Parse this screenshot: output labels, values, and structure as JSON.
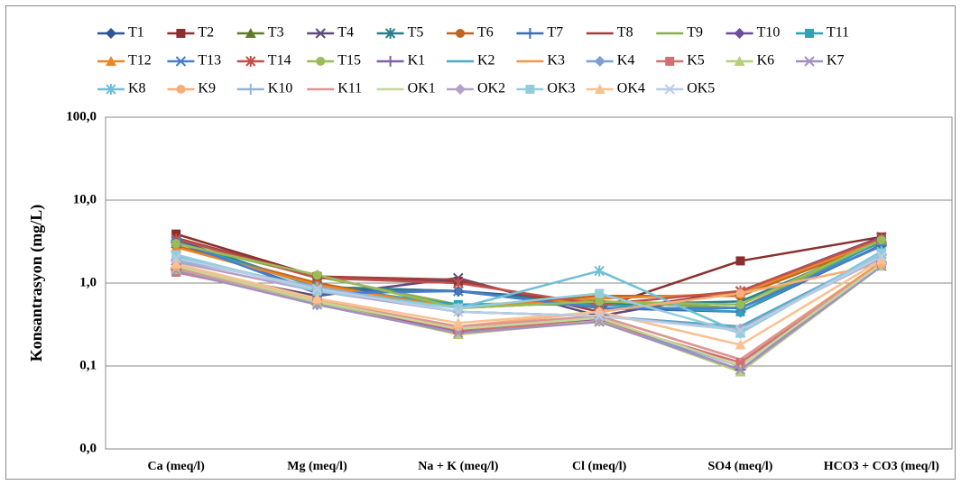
{
  "chart_data": {
    "type": "line",
    "log_scale": true,
    "grid": true,
    "legend": "top",
    "y_label": "Konsantrasyon (mg/L)",
    "categories": [
      "Ca (meq/l)",
      "Mg (meq/l)",
      "Na + K (meq/l)",
      "Cl (meq/l)",
      "SO4 (meq/l)",
      "HCO3 + CO3 (meq/l)"
    ],
    "ylim": [
      0.01,
      100
    ],
    "yticks": [
      {
        "value": 0.01,
        "label": "0,0"
      },
      {
        "value": 0.1,
        "label": "0,1"
      },
      {
        "value": 1,
        "label": "1,0"
      },
      {
        "value": 10,
        "label": "10,0"
      },
      {
        "value": 100,
        "label": "100,0"
      }
    ],
    "series": [
      {
        "name": "T1",
        "color": "#2e5597",
        "marker": "diamond",
        "values": [
          3.3,
          0.9,
          0.8,
          0.6,
          0.5,
          2.8
        ]
      },
      {
        "name": "T2",
        "color": "#8b2e2e",
        "marker": "square",
        "values": [
          3.9,
          1.2,
          1.05,
          0.5,
          1.85,
          3.6
        ]
      },
      {
        "name": "T3",
        "color": "#5f7a2b",
        "marker": "triangle",
        "values": [
          3.0,
          1.25,
          0.5,
          0.6,
          0.55,
          3.4
        ]
      },
      {
        "name": "T4",
        "color": "#5f4a7a",
        "marker": "x",
        "values": [
          1.5,
          0.7,
          1.15,
          0.4,
          0.8,
          3.6
        ]
      },
      {
        "name": "T5",
        "color": "#2a7f8c",
        "marker": "star",
        "values": [
          3.2,
          0.9,
          0.8,
          0.55,
          0.6,
          3.1
        ]
      },
      {
        "name": "T6",
        "color": "#c0651e",
        "marker": "circle",
        "values": [
          2.8,
          1.0,
          0.5,
          0.7,
          0.7,
          3.2
        ]
      },
      {
        "name": "T7",
        "color": "#3a6db5",
        "marker": "plus",
        "values": [
          3.1,
          0.8,
          0.8,
          0.5,
          0.45,
          2.9
        ]
      },
      {
        "name": "T8",
        "color": "#a0403c",
        "marker": "none",
        "values": [
          3.5,
          1.2,
          1.1,
          0.45,
          0.8,
          3.5
        ]
      },
      {
        "name": "T9",
        "color": "#8aae4a",
        "marker": "none",
        "values": [
          3.0,
          1.2,
          0.55,
          0.6,
          0.5,
          3.3
        ]
      },
      {
        "name": "T10",
        "color": "#6e4c9a",
        "marker": "diamond",
        "values": [
          1.45,
          0.58,
          0.26,
          0.36,
          0.1,
          1.8
        ]
      },
      {
        "name": "T11",
        "color": "#31a0b8",
        "marker": "square",
        "values": [
          3.1,
          0.9,
          0.55,
          0.55,
          0.45,
          3.2
        ]
      },
      {
        "name": "T12",
        "color": "#e8872a",
        "marker": "triangle",
        "values": [
          2.7,
          0.95,
          0.5,
          0.65,
          0.75,
          3.3
        ]
      },
      {
        "name": "T13",
        "color": "#4a7ec8",
        "marker": "x",
        "values": [
          3.2,
          0.75,
          0.8,
          0.5,
          0.5,
          2.8
        ]
      },
      {
        "name": "T14",
        "color": "#c0504d",
        "marker": "star",
        "values": [
          3.4,
          1.15,
          1.0,
          0.55,
          0.8,
          3.5
        ]
      },
      {
        "name": "T15",
        "color": "#9bbb59",
        "marker": "circle",
        "values": [
          3.0,
          1.25,
          0.5,
          0.6,
          0.55,
          3.3
        ]
      },
      {
        "name": "K1",
        "color": "#7f62a8",
        "marker": "plus",
        "values": [
          1.5,
          0.55,
          0.25,
          0.35,
          0.09,
          1.7
        ]
      },
      {
        "name": "K2",
        "color": "#4bacc6",
        "marker": "none",
        "values": [
          2.0,
          0.85,
          0.45,
          0.4,
          0.3,
          2.2
        ]
      },
      {
        "name": "K3",
        "color": "#f79646",
        "marker": "none",
        "values": [
          1.6,
          0.6,
          0.3,
          0.4,
          0.12,
          1.8
        ]
      },
      {
        "name": "K4",
        "color": "#7d9ed3",
        "marker": "diamond",
        "values": [
          1.4,
          0.55,
          0.25,
          0.35,
          0.1,
          1.7
        ]
      },
      {
        "name": "K5",
        "color": "#d46f6f",
        "marker": "square",
        "values": [
          1.35,
          0.6,
          0.27,
          0.35,
          0.11,
          1.7
        ]
      },
      {
        "name": "K6",
        "color": "#b5cf7a",
        "marker": "triangle",
        "values": [
          1.45,
          0.58,
          0.24,
          0.35,
          0.085,
          1.6
        ]
      },
      {
        "name": "K7",
        "color": "#a390c0",
        "marker": "x",
        "values": [
          1.4,
          0.55,
          0.25,
          0.34,
          0.09,
          1.6
        ]
      },
      {
        "name": "K8",
        "color": "#6fc0d8",
        "marker": "star",
        "values": [
          2.1,
          0.85,
          0.5,
          1.4,
          0.25,
          2.4
        ]
      },
      {
        "name": "K9",
        "color": "#f9ad78",
        "marker": "circle",
        "values": [
          1.6,
          0.62,
          0.3,
          0.45,
          0.75,
          1.7
        ]
      },
      {
        "name": "K10",
        "color": "#95b3d7",
        "marker": "plus",
        "values": [
          1.9,
          0.9,
          0.45,
          0.4,
          0.28,
          2.2
        ]
      },
      {
        "name": "K11",
        "color": "#d99694",
        "marker": "none",
        "values": [
          1.5,
          0.6,
          0.3,
          0.4,
          0.12,
          1.7
        ]
      },
      {
        "name": "OK1",
        "color": "#c3d69b",
        "marker": "none",
        "values": [
          1.6,
          0.6,
          0.28,
          0.38,
          0.1,
          1.7
        ]
      },
      {
        "name": "OK2",
        "color": "#b3a2c7",
        "marker": "diamond",
        "values": [
          1.8,
          0.8,
          0.45,
          0.4,
          0.28,
          2.0
        ]
      },
      {
        "name": "OK3",
        "color": "#93cddd",
        "marker": "square",
        "values": [
          2.2,
          0.8,
          0.5,
          0.75,
          0.25,
          2.3
        ]
      },
      {
        "name": "OK4",
        "color": "#fac090",
        "marker": "triangle",
        "values": [
          1.7,
          0.65,
          0.33,
          0.45,
          0.18,
          1.9
        ]
      },
      {
        "name": "OK5",
        "color": "#b9cde5",
        "marker": "x",
        "values": [
          2.0,
          0.85,
          0.45,
          0.4,
          0.27,
          2.1
        ]
      }
    ]
  }
}
